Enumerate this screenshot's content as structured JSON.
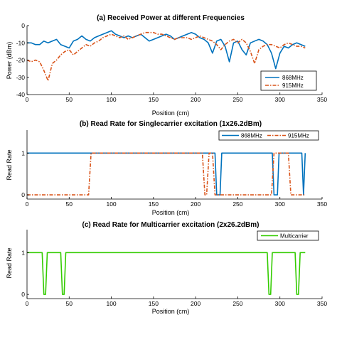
{
  "colors": {
    "blue": "#0072bd",
    "red": "#d95319",
    "green": "#33cc00",
    "axis": "#000000"
  },
  "chart_data": [
    {
      "type": "line",
      "title": "(a) Received Power at different Frequencies",
      "xlabel": "Position (cm)",
      "ylabel": "Power (dBm)",
      "xlim": [
        0,
        350
      ],
      "ylim": [
        -40,
        0
      ],
      "xticks": [
        0,
        50,
        100,
        150,
        200,
        250,
        300,
        350
      ],
      "yticks": [
        0,
        -10,
        -20,
        -30,
        -40
      ],
      "legend_position": "bottom-right",
      "series": [
        {
          "name": "868MHz",
          "color": "#0072bd",
          "style": "solid",
          "x": [
            0,
            5,
            10,
            15,
            20,
            25,
            30,
            35,
            40,
            45,
            50,
            55,
            60,
            65,
            70,
            75,
            80,
            85,
            90,
            95,
            100,
            105,
            110,
            115,
            120,
            125,
            130,
            135,
            140,
            145,
            150,
            155,
            160,
            165,
            170,
            175,
            180,
            185,
            190,
            195,
            200,
            205,
            210,
            215,
            220,
            225,
            230,
            235,
            240,
            245,
            250,
            255,
            260,
            265,
            270,
            275,
            280,
            285,
            290,
            295,
            300,
            305,
            310,
            315,
            320,
            325,
            330
          ],
          "y": [
            -10,
            -10,
            -11,
            -11,
            -9,
            -10,
            -9,
            -8,
            -11,
            -12,
            -13,
            -9,
            -8,
            -6,
            -8,
            -9,
            -7,
            -6,
            -5,
            -4,
            -3,
            -5,
            -6,
            -7,
            -6,
            -7,
            -6,
            -5,
            -7,
            -9,
            -8,
            -7,
            -6,
            -5,
            -6,
            -8,
            -7,
            -6,
            -5,
            -4,
            -5,
            -7,
            -8,
            -10,
            -16,
            -9,
            -8,
            -12,
            -21,
            -10,
            -9,
            -14,
            -17,
            -10,
            -9,
            -8,
            -9,
            -11,
            -16,
            -25,
            -16,
            -12,
            -13,
            -11,
            -10,
            -11,
            -12
          ]
        },
        {
          "name": "915MHz",
          "color": "#d95319",
          "style": "dashdot",
          "x": [
            0,
            5,
            10,
            15,
            20,
            25,
            30,
            35,
            40,
            45,
            50,
            55,
            60,
            65,
            70,
            75,
            80,
            85,
            90,
            95,
            100,
            105,
            110,
            115,
            120,
            125,
            130,
            135,
            140,
            145,
            150,
            155,
            160,
            165,
            170,
            175,
            180,
            185,
            190,
            195,
            200,
            205,
            210,
            215,
            220,
            225,
            230,
            235,
            240,
            245,
            250,
            255,
            260,
            265,
            270,
            275,
            280,
            285,
            290,
            295,
            300,
            305,
            310,
            315,
            320,
            325,
            330
          ],
          "y": [
            -20,
            -21,
            -20,
            -21,
            -26,
            -32,
            -22,
            -20,
            -17,
            -15,
            -14,
            -17,
            -15,
            -13,
            -11,
            -12,
            -10,
            -9,
            -7,
            -6,
            -5,
            -6,
            -7,
            -6,
            -8,
            -7,
            -6,
            -5,
            -4,
            -4,
            -4,
            -5,
            -5,
            -6,
            -7,
            -8,
            -7,
            -7,
            -7,
            -8,
            -7,
            -6,
            -7,
            -8,
            -9,
            -11,
            -14,
            -11,
            -9,
            -8,
            -10,
            -8,
            -10,
            -15,
            -22,
            -14,
            -12,
            -11,
            -11,
            -12,
            -13,
            -11,
            -10,
            -11,
            -12,
            -12,
            -13
          ]
        }
      ]
    },
    {
      "type": "line",
      "title": "(b) Read Rate for Singlecarrier excitation (1x26.2dBm)",
      "xlabel": "Position (cm)",
      "ylabel": "Read Rate",
      "xlim": [
        0,
        350
      ],
      "ylim": [
        -0.1,
        1.55
      ],
      "xticks": [
        0,
        50,
        100,
        150,
        200,
        250,
        300,
        350
      ],
      "yticks": [
        0,
        1
      ],
      "legend_position": "top-right",
      "series": [
        {
          "name": "868MHz",
          "color": "#0072bd",
          "style": "solid",
          "x": [
            0,
            223,
            225,
            227,
            229,
            231,
            291,
            293,
            295,
            297,
            299,
            326,
            328,
            330
          ],
          "y": [
            1,
            1,
            0,
            0,
            0,
            1,
            1,
            0,
            0,
            0,
            1,
            1,
            0,
            1
          ]
        },
        {
          "name": "915MHz",
          "color": "#d95319",
          "style": "dashdot",
          "x": [
            0,
            73,
            76,
            208,
            211,
            213,
            216,
            220,
            223,
            231,
            234,
            290,
            293,
            310,
            313,
            330
          ],
          "y": [
            0,
            0,
            1,
            1,
            0,
            0,
            1,
            1,
            0,
            0,
            0,
            0,
            1,
            1,
            0,
            0
          ]
        }
      ]
    },
    {
      "type": "line",
      "title": "(c) Read Rate for Multicarrier excitation (2x26.2dBm)",
      "xlabel": "Position (cm)",
      "ylabel": "Read Rate",
      "xlim": [
        0,
        350
      ],
      "ylim": [
        -0.1,
        1.55
      ],
      "xticks": [
        0,
        50,
        100,
        150,
        200,
        250,
        300,
        350
      ],
      "yticks": [
        0,
        1
      ],
      "legend_position": "top-right",
      "series": [
        {
          "name": "Multicarrier",
          "color": "#33cc00",
          "style": "solid",
          "x": [
            0,
            18,
            20,
            22,
            24,
            40,
            42,
            44,
            46,
            285,
            287,
            289,
            291,
            318,
            320,
            322,
            324,
            330
          ],
          "y": [
            1,
            1,
            0,
            0,
            1,
            1,
            0,
            0,
            1,
            1,
            0,
            0,
            1,
            1,
            0,
            0,
            1,
            1
          ]
        }
      ]
    }
  ]
}
